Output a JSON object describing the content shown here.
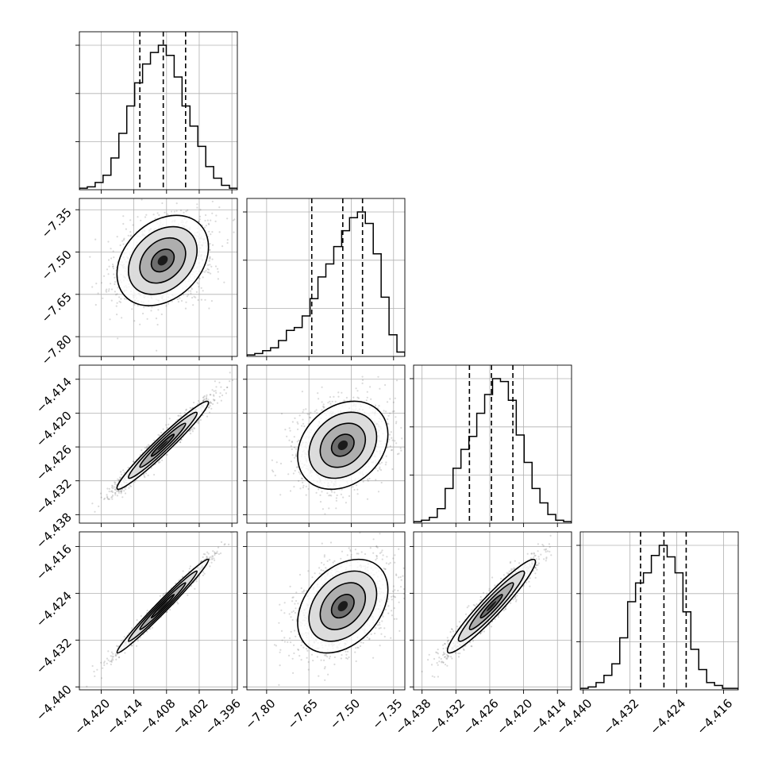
{
  "chart_data": {
    "type": "corner",
    "grid": true,
    "parameters": [
      {
        "index": 0,
        "range": [
          -4.424,
          -4.395
        ],
        "ticks": [
          -4.42,
          -4.414,
          -4.408,
          -4.402,
          -4.396
        ],
        "tick_labels": [
          "−4.420",
          "−4.414",
          "−4.408",
          "−4.402",
          "−4.396"
        ],
        "quantiles": [
          -4.4129,
          -4.4086,
          -4.4045
        ],
        "mean": -4.4087,
        "sigma": 0.0042,
        "histogram": [
          0.01,
          0.02,
          0.05,
          0.1,
          0.22,
          0.39,
          0.58,
          0.74,
          0.87,
          0.95,
          1.0,
          0.93,
          0.78,
          0.58,
          0.44,
          0.3,
          0.16,
          0.08,
          0.03,
          0.01
        ]
      },
      {
        "index": 1,
        "range": [
          -7.87,
          -7.31
        ],
        "ticks": [
          -7.8,
          -7.65,
          -7.5,
          -7.35
        ],
        "tick_labels": [
          "−7.80",
          "−7.65",
          "−7.50",
          "−7.35"
        ],
        "quantiles": [
          -7.64,
          -7.53,
          -7.46
        ],
        "mean": -7.53,
        "sigma": 0.08,
        "histogram": [
          0.01,
          0.02,
          0.04,
          0.06,
          0.11,
          0.18,
          0.2,
          0.28,
          0.4,
          0.55,
          0.64,
          0.76,
          0.87,
          0.96,
          1.0,
          0.92,
          0.71,
          0.41,
          0.15,
          0.03
        ]
      },
      {
        "index": 2,
        "range": [
          -4.4395,
          -4.4115
        ],
        "ticks": [
          -4.438,
          -4.432,
          -4.426,
          -4.42,
          -4.414
        ],
        "tick_labels": [
          "−4.438",
          "−4.432",
          "−4.426",
          "−4.420",
          "−4.414"
        ],
        "quantiles": [
          -4.4296,
          -4.4257,
          -4.4219
        ],
        "mean": -4.4257,
        "sigma": 0.0039,
        "histogram": [
          0.01,
          0.02,
          0.04,
          0.1,
          0.24,
          0.38,
          0.51,
          0.6,
          0.76,
          0.89,
          1.0,
          0.98,
          0.85,
          0.61,
          0.42,
          0.24,
          0.14,
          0.06,
          0.02,
          0.01
        ]
      },
      {
        "index": 3,
        "range": [
          -4.4405,
          -4.4135
        ],
        "ticks": [
          -4.44,
          -4.432,
          -4.424,
          -4.416
        ],
        "tick_labels": [
          "−4.440",
          "−4.432",
          "−4.424",
          "−4.416"
        ],
        "quantiles": [
          -4.4302,
          -4.4262,
          -4.4224
        ],
        "mean": -4.4262,
        "sigma": 0.004,
        "histogram": [
          0.01,
          0.02,
          0.05,
          0.1,
          0.18,
          0.36,
          0.61,
          0.74,
          0.81,
          0.93,
          1.0,
          0.92,
          0.81,
          0.54,
          0.28,
          0.14,
          0.05,
          0.03,
          0.01,
          0.01
        ]
      }
    ],
    "correlations": {
      "1-0": 0.3,
      "2-0": 0.97,
      "2-1": 0.25,
      "3-0": 0.985,
      "3-1": 0.35,
      "3-2": 0.95
    }
  }
}
